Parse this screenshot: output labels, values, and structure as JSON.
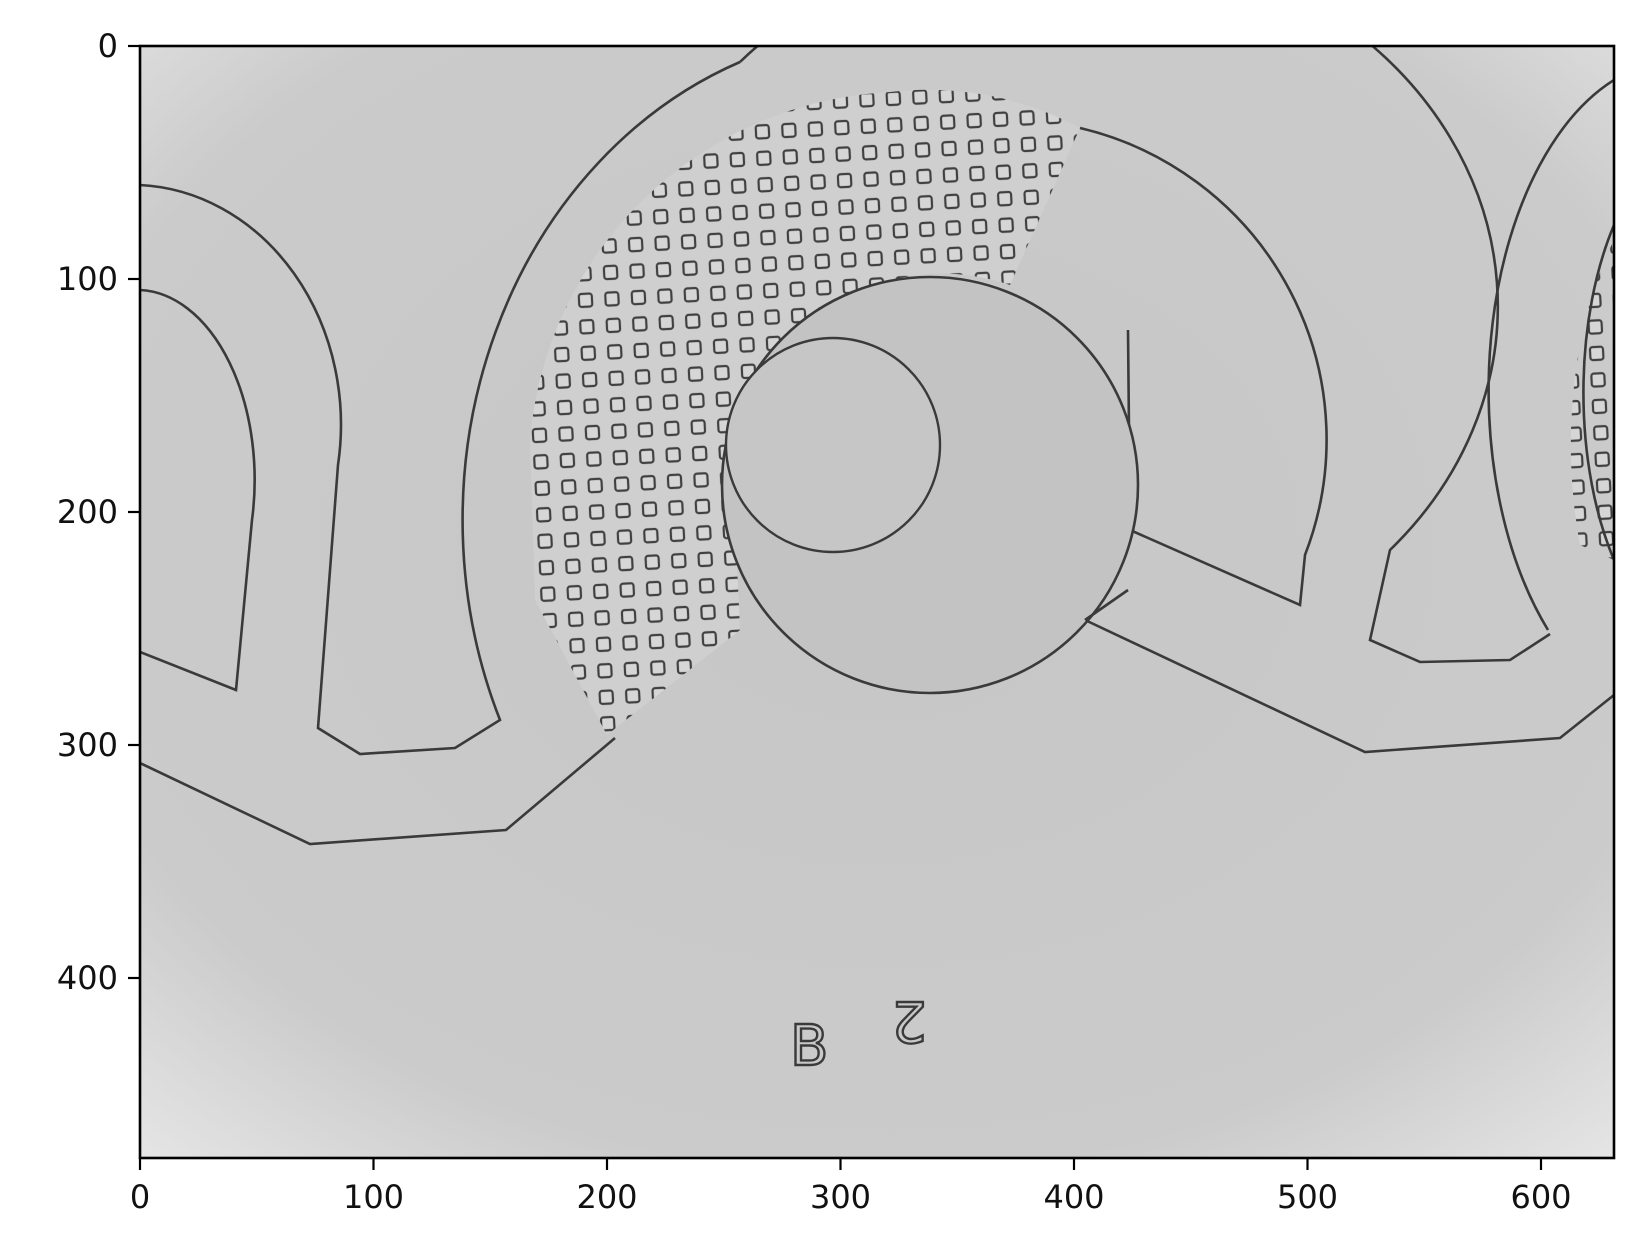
{
  "figure": {
    "type": "image-plot",
    "description_visible_text": [
      "B",
      "2"
    ]
  },
  "axes": {
    "x_ticks": [
      0,
      100,
      200,
      300,
      400,
      500,
      600
    ],
    "y_ticks": [
      0,
      100,
      200,
      300,
      400
    ],
    "xlim": [
      0,
      631
    ],
    "ylim": [
      477,
      0
    ]
  },
  "image_labels": {
    "engraved_letter": "B",
    "engraved_digit": "2"
  },
  "colors": {
    "background": "#c9c9c9",
    "channel_edge": "#3a3a3a",
    "channel_fill": "#c3c3c3",
    "frame": "#000000"
  }
}
